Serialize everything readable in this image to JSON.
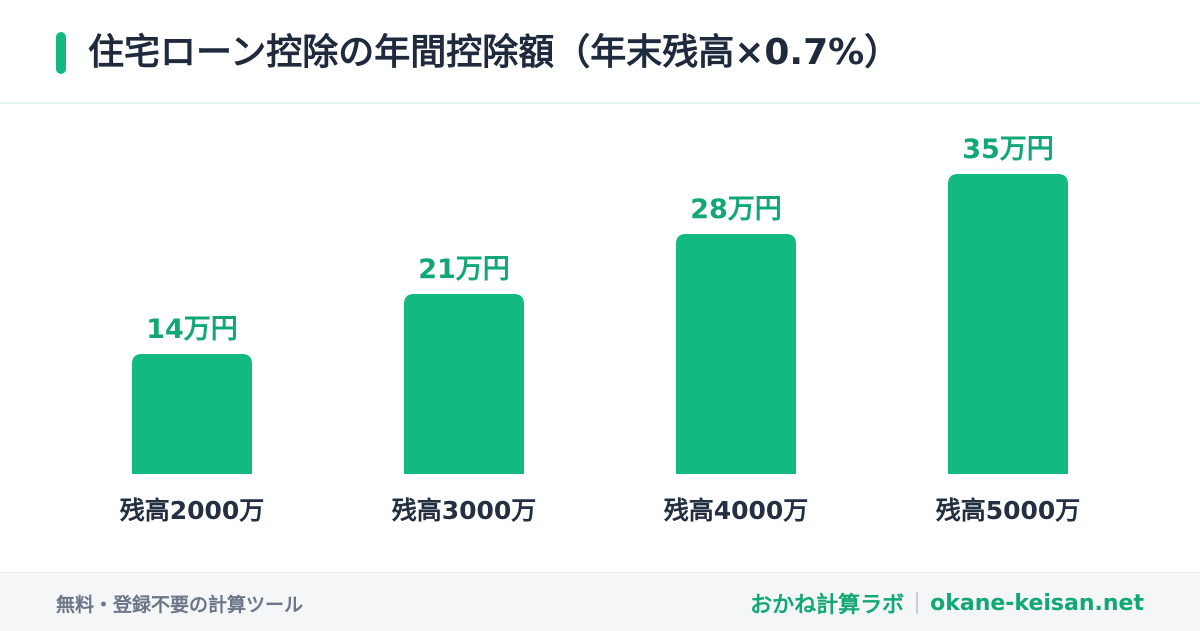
{
  "header": {
    "title": "住宅ローン控除の年間控除額（年末残高×0.7%）"
  },
  "chart_data": {
    "type": "bar",
    "title": "住宅ローン控除の年間控除額（年末残高×0.7%）",
    "categories": [
      "残高2000万",
      "残高3000万",
      "残高4000万",
      "残高5000万"
    ],
    "values": [
      14,
      21,
      28,
      35
    ],
    "value_labels": [
      "14万円",
      "21万円",
      "28万円",
      "35万円"
    ],
    "xlabel": "",
    "ylabel": "",
    "unit": "万円",
    "ylim": [
      0,
      35
    ],
    "grid": false,
    "bar_color": "#12b981",
    "value_label_color": "#12a873",
    "category_label_color": "#243042"
  },
  "footer": {
    "left_text": "無料・登録不要の計算ツール",
    "brand": "おかね計算ラボ",
    "domain": "okane-keisan.net"
  }
}
